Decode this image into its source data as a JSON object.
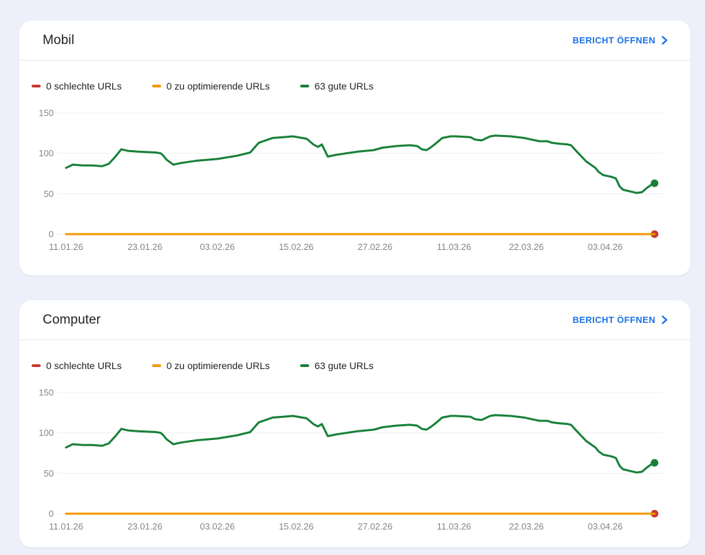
{
  "page": {
    "background": "#edf0fb"
  },
  "colors": {
    "card_bg": "#ffffff",
    "link_blue": "#1a73e8",
    "bad_red": "#c5392e",
    "warn_orange": "#f29900",
    "good_green": "#188038",
    "axis_gray": "#80868b",
    "grid_gray": "#edeff1",
    "title_dark": "#202124",
    "divider": "#e4e7ea"
  },
  "cards": [
    {
      "title": "Mobil",
      "action_label": "BERICHT ÖFFNEN",
      "action_icon": "chevron-right-icon",
      "legend": [
        {
          "label": "0 schlechte URLs",
          "color": "#c5392e"
        },
        {
          "label": "0 zu optimierende URLs",
          "color": "#f29900"
        },
        {
          "label": "63 gute URLs",
          "color": "#188038"
        }
      ],
      "chart_data": {
        "type": "line",
        "title": "Mobil",
        "xlabel": "",
        "ylabel": "",
        "ylim": [
          0,
          150
        ],
        "yticks": [
          0,
          50,
          100,
          150
        ],
        "grid": true,
        "legend_position": "top",
        "x_unit": "days since 11.01.26",
        "x_axis_end_day": 91,
        "x_ticks": [
          {
            "label": "11.01.26",
            "day": 0
          },
          {
            "label": "23.01.26",
            "day": 12
          },
          {
            "label": "03.02.26",
            "day": 23
          },
          {
            "label": "15.02.26",
            "day": 35
          },
          {
            "label": "27.02.26",
            "day": 47
          },
          {
            "label": "11.03.26",
            "day": 59
          },
          {
            "label": "22.03.26",
            "day": 70
          },
          {
            "label": "03.04.26",
            "day": 82
          }
        ],
        "series": [
          {
            "name": "0 schlechte URLs",
            "color": "#c5392e",
            "width": 3,
            "end_dot": true,
            "points": [
              [
                0,
                0
              ],
              [
                89.5,
                0
              ]
            ]
          },
          {
            "name": "0 zu optimierende URLs",
            "color": "#f29900",
            "width": 3,
            "end_dot": false,
            "points": [
              [
                0,
                0
              ],
              [
                89.5,
                0
              ]
            ]
          },
          {
            "name": "63 gute URLs",
            "color": "#188038",
            "width": 3,
            "end_dot": true,
            "points": [
              [
                0,
                82
              ],
              [
                1,
                86
              ],
              [
                2.5,
                85
              ],
              [
                4,
                85
              ],
              [
                5.5,
                84
              ],
              [
                6.5,
                87
              ],
              [
                7.5,
                96
              ],
              [
                8.4,
                105
              ],
              [
                9.4,
                103
              ],
              [
                11,
                102
              ],
              [
                13.7,
                101
              ],
              [
                14.4,
                100
              ],
              [
                14.8,
                97
              ],
              [
                15.3,
                92
              ],
              [
                16.3,
                86
              ],
              [
                17.5,
                88
              ],
              [
                20,
                91
              ],
              [
                23,
                93
              ],
              [
                26,
                97
              ],
              [
                28,
                101
              ],
              [
                29.3,
                113
              ],
              [
                31.4,
                119
              ],
              [
                33,
                120
              ],
              [
                34.5,
                121
              ],
              [
                36.6,
                118
              ],
              [
                37.6,
                111
              ],
              [
                38.3,
                108
              ],
              [
                38.9,
                111
              ],
              [
                39.8,
                96
              ],
              [
                41,
                98
              ],
              [
                42.6,
                100
              ],
              [
                44.3,
                102
              ],
              [
                46.8,
                104
              ],
              [
                48.1,
                107
              ],
              [
                50.2,
                109
              ],
              [
                52.3,
                110
              ],
              [
                53.4,
                109
              ],
              [
                54.1,
                105
              ],
              [
                54.8,
                104
              ],
              [
                55.4,
                107
              ],
              [
                56.2,
                112
              ],
              [
                57.2,
                119
              ],
              [
                58.5,
                121
              ],
              [
                59.3,
                121
              ],
              [
                61.5,
                120
              ],
              [
                62.2,
                117
              ],
              [
                63.2,
                116
              ],
              [
                64.5,
                121
              ],
              [
                65.3,
                122
              ],
              [
                67.6,
                121
              ],
              [
                69.7,
                119
              ],
              [
                70.8,
                117
              ],
              [
                72,
                115
              ],
              [
                73.2,
                115
              ],
              [
                73.9,
                113
              ],
              [
                74.9,
                112
              ],
              [
                76.3,
                111
              ],
              [
                76.8,
                110
              ],
              [
                77.7,
                102
              ],
              [
                78.4,
                96
              ],
              [
                79.1,
                90
              ],
              [
                79.8,
                86
              ],
              [
                80.5,
                82
              ],
              [
                81,
                77
              ],
              [
                81.7,
                73
              ],
              [
                82.9,
                71
              ],
              [
                83.6,
                69
              ],
              [
                84.2,
                59
              ],
              [
                84.7,
                55
              ],
              [
                85.7,
                53
              ],
              [
                86.8,
                51
              ],
              [
                87.6,
                52
              ],
              [
                88.3,
                57
              ],
              [
                89,
                61
              ],
              [
                89.5,
                63
              ]
            ]
          }
        ]
      }
    },
    {
      "title": "Computer",
      "action_label": "BERICHT ÖFFNEN",
      "action_icon": "chevron-right-icon",
      "legend": [
        {
          "label": "0 schlechte URLs",
          "color": "#c5392e"
        },
        {
          "label": "0 zu optimierende URLs",
          "color": "#f29900"
        },
        {
          "label": "63 gute URLs",
          "color": "#188038"
        }
      ],
      "chart_data": {
        "type": "line",
        "title": "Computer",
        "xlabel": "",
        "ylabel": "",
        "ylim": [
          0,
          150
        ],
        "yticks": [
          0,
          50,
          100,
          150
        ],
        "grid": true,
        "legend_position": "top",
        "x_unit": "days since 11.01.26",
        "x_axis_end_day": 91,
        "x_ticks": [
          {
            "label": "11.01.26",
            "day": 0
          },
          {
            "label": "23.01.26",
            "day": 12
          },
          {
            "label": "03.02.26",
            "day": 23
          },
          {
            "label": "15.02.26",
            "day": 35
          },
          {
            "label": "27.02.26",
            "day": 47
          },
          {
            "label": "11.03.26",
            "day": 59
          },
          {
            "label": "22.03.26",
            "day": 70
          },
          {
            "label": "03.04.26",
            "day": 82
          }
        ],
        "series": [
          {
            "name": "0 schlechte URLs",
            "color": "#c5392e",
            "width": 3,
            "end_dot": true,
            "points": [
              [
                0,
                0
              ],
              [
                89.5,
                0
              ]
            ]
          },
          {
            "name": "0 zu optimierende URLs",
            "color": "#f29900",
            "width": 3,
            "end_dot": false,
            "points": [
              [
                0,
                0
              ],
              [
                89.5,
                0
              ]
            ]
          },
          {
            "name": "63 gute URLs",
            "color": "#188038",
            "width": 3,
            "end_dot": true,
            "points": [
              [
                0,
                82
              ],
              [
                1,
                86
              ],
              [
                2.5,
                85
              ],
              [
                4,
                85
              ],
              [
                5.5,
                84
              ],
              [
                6.5,
                87
              ],
              [
                7.5,
                96
              ],
              [
                8.4,
                105
              ],
              [
                9.4,
                103
              ],
              [
                11,
                102
              ],
              [
                13.7,
                101
              ],
              [
                14.4,
                100
              ],
              [
                14.8,
                97
              ],
              [
                15.3,
                92
              ],
              [
                16.3,
                86
              ],
              [
                17.5,
                88
              ],
              [
                20,
                91
              ],
              [
                23,
                93
              ],
              [
                26,
                97
              ],
              [
                28,
                101
              ],
              [
                29.3,
                113
              ],
              [
                31.4,
                119
              ],
              [
                33,
                120
              ],
              [
                34.5,
                121
              ],
              [
                36.6,
                118
              ],
              [
                37.6,
                111
              ],
              [
                38.3,
                108
              ],
              [
                38.9,
                111
              ],
              [
                39.8,
                96
              ],
              [
                41,
                98
              ],
              [
                42.6,
                100
              ],
              [
                44.3,
                102
              ],
              [
                46.8,
                104
              ],
              [
                48.1,
                107
              ],
              [
                50.2,
                109
              ],
              [
                52.3,
                110
              ],
              [
                53.4,
                109
              ],
              [
                54.1,
                105
              ],
              [
                54.8,
                104
              ],
              [
                55.4,
                107
              ],
              [
                56.2,
                112
              ],
              [
                57.2,
                119
              ],
              [
                58.5,
                121
              ],
              [
                59.3,
                121
              ],
              [
                61.5,
                120
              ],
              [
                62.2,
                117
              ],
              [
                63.2,
                116
              ],
              [
                64.5,
                121
              ],
              [
                65.3,
                122
              ],
              [
                67.6,
                121
              ],
              [
                69.7,
                119
              ],
              [
                70.8,
                117
              ],
              [
                72,
                115
              ],
              [
                73.2,
                115
              ],
              [
                73.9,
                113
              ],
              [
                74.9,
                112
              ],
              [
                76.3,
                111
              ],
              [
                76.8,
                110
              ],
              [
                77.7,
                102
              ],
              [
                78.4,
                96
              ],
              [
                79.1,
                90
              ],
              [
                79.8,
                86
              ],
              [
                80.5,
                82
              ],
              [
                81,
                77
              ],
              [
                81.7,
                73
              ],
              [
                82.9,
                71
              ],
              [
                83.6,
                69
              ],
              [
                84.2,
                59
              ],
              [
                84.7,
                55
              ],
              [
                85.7,
                53
              ],
              [
                86.8,
                51
              ],
              [
                87.6,
                52
              ],
              [
                88.3,
                57
              ],
              [
                89,
                61
              ],
              [
                89.5,
                63
              ]
            ]
          }
        ]
      }
    }
  ]
}
